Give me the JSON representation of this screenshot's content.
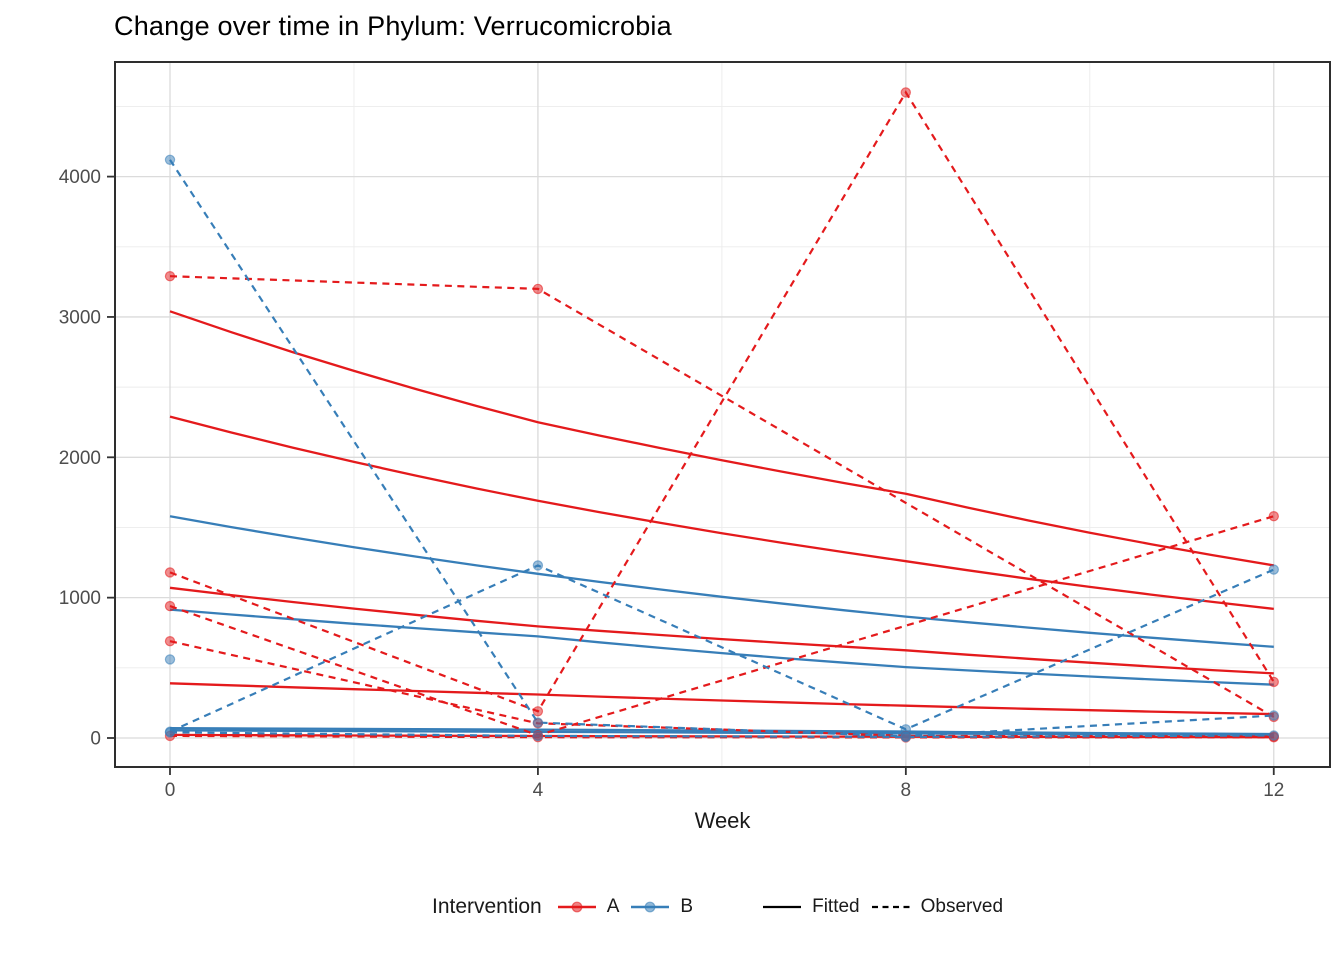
{
  "chart_data": {
    "type": "line",
    "title": "Change over time in Phylum: Verrucomicrobia",
    "xlabel": "Week",
    "ylabel": "",
    "x_ticks": [
      0,
      4,
      8,
      12
    ],
    "x_minor": [
      2,
      6,
      10
    ],
    "y_ticks": [
      0,
      1000,
      2000,
      3000,
      4000
    ],
    "y_minor": [
      500,
      1500,
      2500,
      3500,
      4500
    ],
    "xlim": [
      -0.55,
      12.6
    ],
    "ylim": [
      -230,
      4820
    ],
    "grid": true,
    "panel_border_color": "#2e2e2e",
    "grid_major_color": "#dbdbdb",
    "grid_minor_color": "#ececec",
    "tick_label_color": "#4d4d4d",
    "legend": {
      "title": "Intervention",
      "position": "bottom",
      "groups": [
        {
          "label": "A",
          "color": "#E41A1C"
        },
        {
          "label": "B",
          "color": "#377EB8"
        }
      ],
      "linetypes": [
        {
          "label": "Fitted",
          "style": "solid",
          "color": "#000000"
        },
        {
          "label": "Observed",
          "style": "dashed",
          "color": "#000000"
        }
      ]
    },
    "series": [
      {
        "group": "A",
        "kind": "fitted",
        "weeks": [
          0,
          4,
          8,
          12
        ],
        "values": [
          3040,
          2250,
          1740,
          1230
        ]
      },
      {
        "group": "A",
        "kind": "fitted",
        "weeks": [
          0,
          4,
          8,
          12
        ],
        "values": [
          2290,
          1690,
          1260,
          920
        ]
      },
      {
        "group": "A",
        "kind": "fitted",
        "weeks": [
          0,
          4,
          8,
          12
        ],
        "values": [
          1070,
          795,
          625,
          460
        ]
      },
      {
        "group": "A",
        "kind": "fitted",
        "weeks": [
          0,
          4,
          8,
          12
        ],
        "values": [
          390,
          310,
          230,
          170
        ]
      },
      {
        "group": "A",
        "kind": "fitted",
        "weeks": [
          0,
          4,
          8,
          12
        ],
        "values": [
          22,
          14,
          9,
          6
        ]
      },
      {
        "group": "B",
        "kind": "fitted",
        "weeks": [
          0,
          4,
          8,
          12
        ],
        "values": [
          1580,
          1170,
          865,
          650
        ]
      },
      {
        "group": "B",
        "kind": "fitted",
        "weeks": [
          0,
          4,
          8,
          12
        ],
        "values": [
          915,
          724,
          505,
          380
        ]
      },
      {
        "group": "B",
        "kind": "fitted",
        "weeks": [
          0,
          4,
          8,
          12
        ],
        "values": [
          70,
          60,
          46,
          28
        ]
      },
      {
        "group": "B",
        "kind": "fitted",
        "weeks": [
          0,
          4,
          8,
          12
        ],
        "values": [
          55,
          44,
          33,
          22
        ]
      },
      {
        "group": "A",
        "kind": "observed",
        "weeks": [
          0,
          4,
          12
        ],
        "values": [
          3290,
          3200,
          150
        ]
      },
      {
        "group": "A",
        "kind": "observed",
        "weeks": [
          0,
          4,
          8,
          12
        ],
        "values": [
          1180,
          190,
          4600,
          400
        ]
      },
      {
        "group": "A",
        "kind": "observed",
        "weeks": [
          0,
          4,
          12
        ],
        "values": [
          940,
          20,
          1580
        ]
      },
      {
        "group": "A",
        "kind": "observed",
        "weeks": [
          0,
          4,
          8,
          12
        ],
        "values": [
          690,
          105,
          15,
          10
        ]
      },
      {
        "group": "A",
        "kind": "observed",
        "weeks": [
          0,
          4,
          8,
          12
        ],
        "values": [
          15,
          6,
          4,
          5
        ]
      },
      {
        "group": "B",
        "kind": "observed",
        "weeks": [
          0,
          4,
          8,
          12
        ],
        "values": [
          4120,
          110,
          12,
          160
        ]
      },
      {
        "group": "B",
        "kind": "observed",
        "weeks": [
          0,
          4,
          8,
          12
        ],
        "values": [
          45,
          1230,
          62,
          1200
        ]
      },
      {
        "group": "B",
        "kind": "observed",
        "weeks": [
          0,
          4,
          8,
          12
        ],
        "values": [
          40,
          15,
          8,
          18
        ]
      },
      {
        "group": "B",
        "kind": "observed",
        "weeks": [
          0
        ],
        "values": [
          560
        ]
      }
    ]
  }
}
